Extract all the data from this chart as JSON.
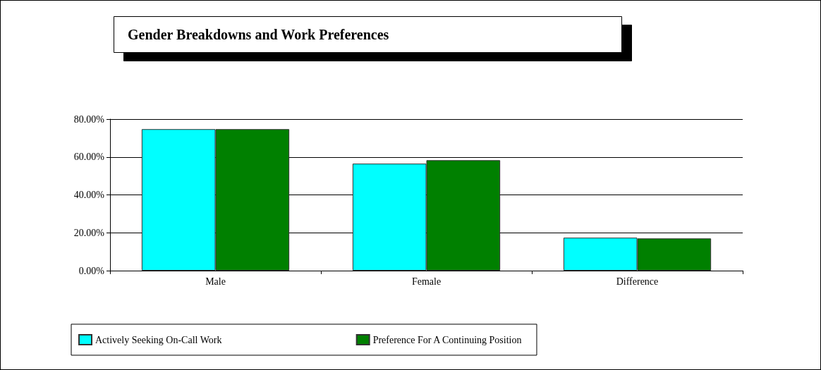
{
  "chart_data": {
    "type": "bar",
    "title": "Gender Breakdowns and Work Preferences",
    "categories": [
      "Male",
      "Female",
      "Difference"
    ],
    "series": [
      {
        "name": "Actively Seeking On-Call Work",
        "color": "#00ffff",
        "values": [
          74.7,
          56.5,
          17.4
        ]
      },
      {
        "name": "Preference For A Continuing Position",
        "color": "#008000",
        "values": [
          74.7,
          58.3,
          17.0
        ]
      }
    ],
    "ylim": [
      0,
      80
    ],
    "yticks": [
      {
        "value": 0,
        "label": "0.00%"
      },
      {
        "value": 20,
        "label": "20.00%"
      },
      {
        "value": 40,
        "label": "40.00%"
      },
      {
        "value": 60,
        "label": "60.00%"
      },
      {
        "value": 80,
        "label": "80.00%"
      }
    ],
    "grid": "y",
    "legend": "bottom"
  }
}
